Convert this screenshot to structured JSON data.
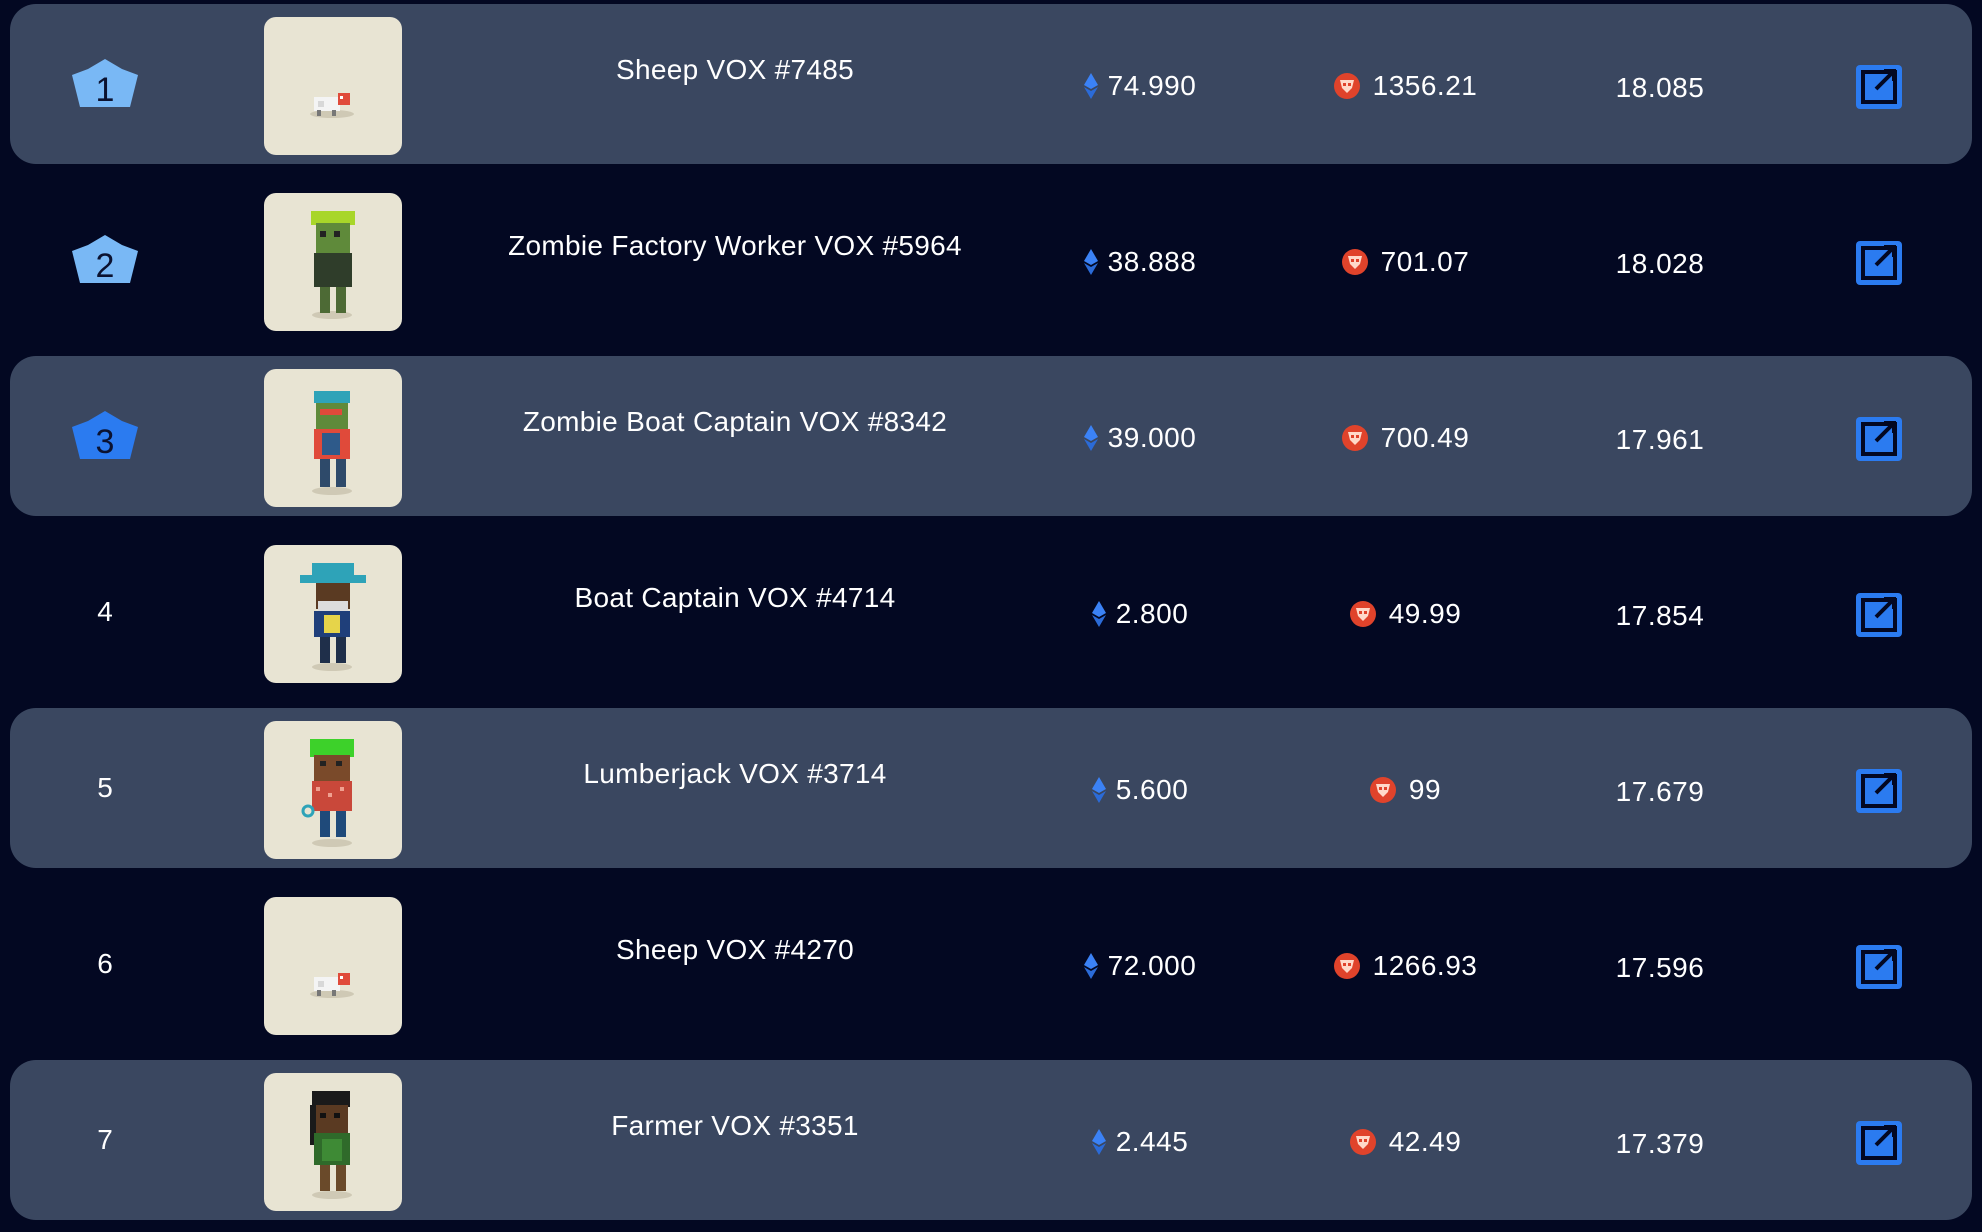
{
  "colors": {
    "background": "#030822",
    "row_shaded": "#3a4760",
    "accent_blue": "#2b7bf0",
    "thumb_bg": "#e8e4d3",
    "fyr_red": "#e0432b"
  },
  "rows": [
    {
      "rank": "1",
      "name": "Sheep VOX #7485",
      "eth": "74.990",
      "fyr": "1356.21",
      "score": "18.085",
      "thumbnail": "sheep",
      "shaded": true,
      "crown": "light-blue"
    },
    {
      "rank": "2",
      "name": "Zombie Factory Worker VOX #5964",
      "eth": "38.888",
      "fyr": "701.07",
      "score": "18.028",
      "thumbnail": "zombie-factory-worker",
      "shaded": false,
      "crown": "light-blue"
    },
    {
      "rank": "3",
      "name": "Zombie Boat Captain VOX #8342",
      "eth": "39.000",
      "fyr": "700.49",
      "score": "17.961",
      "thumbnail": "zombie-boat-captain",
      "shaded": true,
      "crown": "blue"
    },
    {
      "rank": "4",
      "name": "Boat Captain VOX #4714",
      "eth": "2.800",
      "fyr": "49.99",
      "score": "17.854",
      "thumbnail": "boat-captain",
      "shaded": false
    },
    {
      "rank": "5",
      "name": "Lumberjack VOX #3714",
      "eth": "5.600",
      "fyr": "99",
      "score": "17.679",
      "thumbnail": "lumberjack",
      "shaded": true
    },
    {
      "rank": "6",
      "name": "Sheep VOX #4270",
      "eth": "72.000",
      "fyr": "1266.93",
      "score": "17.596",
      "thumbnail": "sheep",
      "shaded": false
    },
    {
      "rank": "7",
      "name": "Farmer VOX #3351",
      "eth": "2.445",
      "fyr": "42.49",
      "score": "17.379",
      "thumbnail": "farmer",
      "shaded": true
    }
  ],
  "icons": {
    "price_icon": "ethereum-icon",
    "token_icon": "fyr-token-icon",
    "link_icon": "external-link-icon",
    "rank_icon": "crown-icon"
  }
}
